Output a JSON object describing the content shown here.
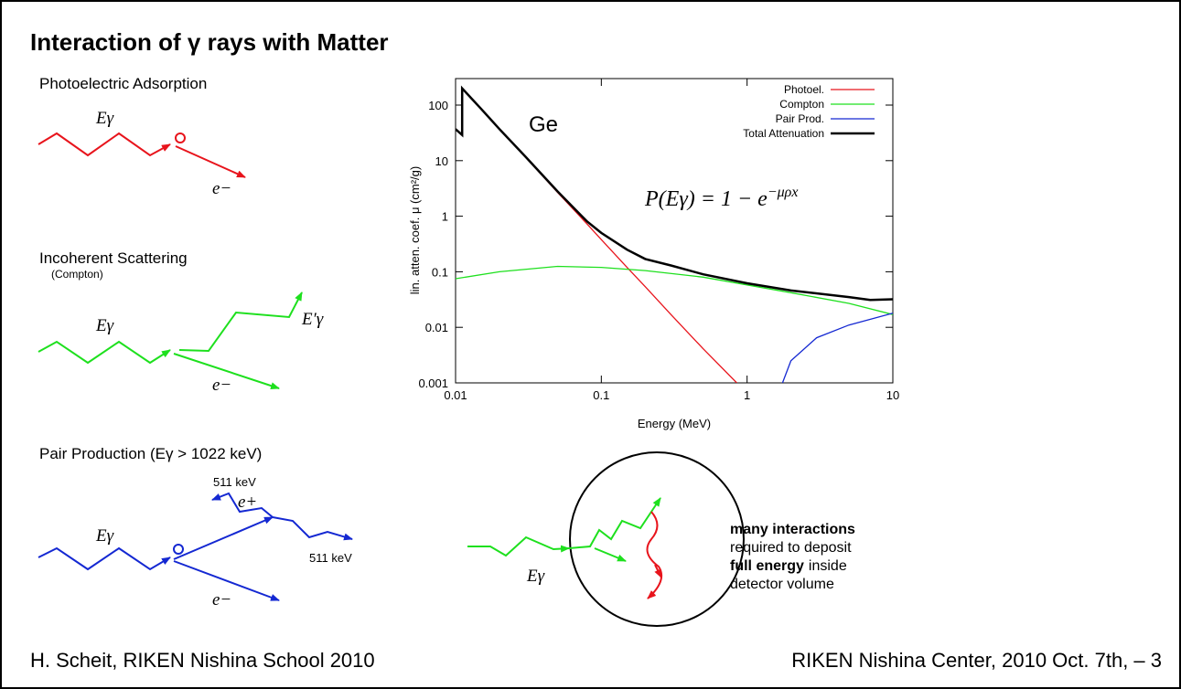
{
  "title": "Interaction of γ rays with Matter",
  "photoelectric": {
    "label": "Photoelectric Adsorption",
    "photon": "Eγ",
    "electron": "e−"
  },
  "compton": {
    "label": "Incoherent Scattering",
    "sublabel": "(Compton)",
    "photon": "Eγ",
    "scattered": "E′γ",
    "electron": "e−"
  },
  "pair": {
    "label": "Pair Production (Eγ > 1022 keV)",
    "photon": "Eγ",
    "positron": "e+",
    "electron": "e−",
    "annihilation": [
      "511 keV",
      "511 keV"
    ]
  },
  "detector": {
    "photon": "Eγ",
    "text": [
      [
        {
          "text": "many interactions",
          "bold": true
        }
      ],
      [
        {
          "text": "required to deposit",
          "bold": false
        }
      ],
      [
        {
          "text": "full energy",
          "bold": true
        },
        {
          "text": "inside",
          "bold": false
        }
      ],
      [
        {
          "text": "detector volume",
          "bold": false
        }
      ]
    ]
  },
  "footer": {
    "left": "H. Scheit, RIKEN Nishina School 2010",
    "right": "RIKEN Nishina Center, 2010 Oct. 7th, – 3"
  },
  "chart_data": {
    "type": "line",
    "annotations": [
      "Ge"
    ],
    "formula": {
      "main": "P(Eγ) = 1 − e",
      "exponent": "−μρx"
    },
    "x_label": "Energy (MeV)",
    "y_label": "lin. atten. coef. μ (cm²/g)",
    "xscale": "log",
    "yscale": "log",
    "legend": "top-right",
    "grid": false,
    "xlim": [
      0.01,
      10
    ],
    "ylim": [
      0.001,
      300
    ],
    "xticks": [
      0.01,
      0.1,
      1,
      10
    ],
    "yticks": [
      0.001,
      0.01,
      0.1,
      1,
      10,
      100
    ],
    "series": [
      {
        "name": "Photoel.",
        "color": "#e8141c",
        "x": [
          0.01,
          0.0111,
          0.0111,
          0.015,
          0.02,
          0.03,
          0.05,
          0.08,
          0.1,
          0.15,
          0.2,
          0.3,
          0.5,
          0.85
        ],
        "values": [
          37,
          29,
          200,
          85,
          37,
          11.8,
          2.7,
          0.72,
          0.38,
          0.12,
          0.054,
          0.017,
          0.0041,
          0.001
        ]
      },
      {
        "name": "Compton",
        "color": "#1ee01e",
        "x": [
          0.01,
          0.02,
          0.05,
          0.1,
          0.2,
          0.5,
          1,
          2,
          5,
          10
        ],
        "values": [
          0.075,
          0.1,
          0.125,
          0.12,
          0.105,
          0.08,
          0.058,
          0.042,
          0.027,
          0.017
        ]
      },
      {
        "name": "Pair Prod.",
        "color": "#1428d2",
        "x": [
          1.75,
          2,
          3,
          5,
          10
        ],
        "values": [
          0.001,
          0.0025,
          0.0065,
          0.011,
          0.018
        ]
      },
      {
        "name": "Total Attenuation",
        "color": "#000000",
        "x": [
          0.01,
          0.0111,
          0.0111,
          0.015,
          0.02,
          0.03,
          0.05,
          0.08,
          0.1,
          0.15,
          0.2,
          0.3,
          0.5,
          1,
          2,
          5,
          7,
          10
        ],
        "values": [
          37,
          29,
          200,
          85,
          37,
          12,
          2.8,
          0.8,
          0.5,
          0.25,
          0.17,
          0.13,
          0.09,
          0.062,
          0.046,
          0.035,
          0.031,
          0.032
        ]
      }
    ]
  }
}
